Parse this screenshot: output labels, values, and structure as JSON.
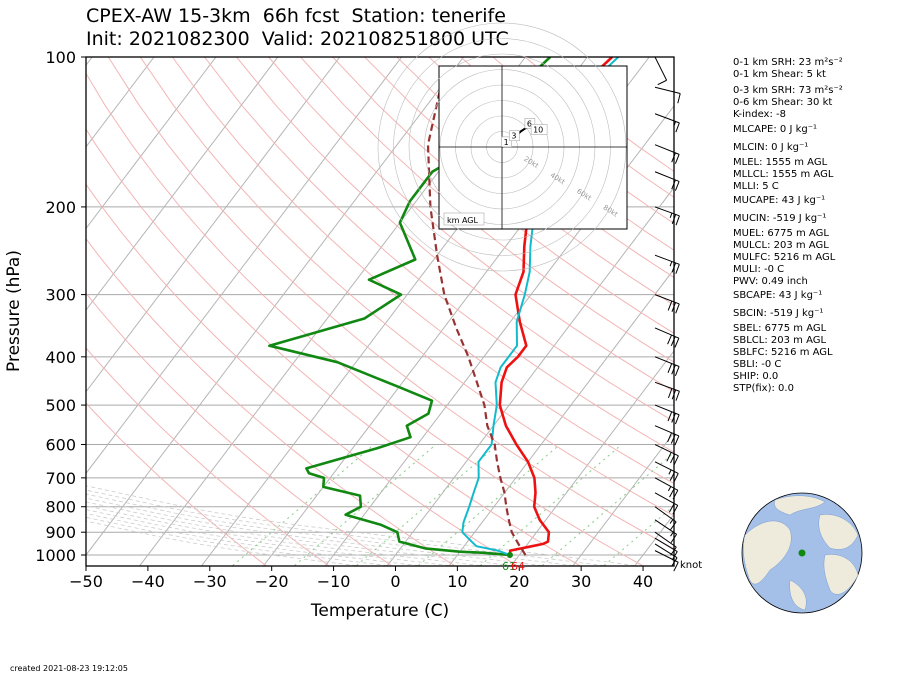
{
  "title": {
    "line1": "CPEX-AW 15-3km  66h fcst  Station: tenerife",
    "line2": "Init: 2021082300  Valid: 202108251800 UTC"
  },
  "created": "created 2021-08-23 19:12:05",
  "wind_unit": "knot",
  "hodograph": {
    "label": "km AGL",
    "ring_labels": [
      "20kt",
      "40kt",
      "60kt",
      "80kt"
    ],
    "height_labels": [
      "1",
      "3",
      "6",
      "10"
    ]
  },
  "surface_labels": {
    "dewpoint": "61",
    "temperature": "64"
  },
  "indices": [
    {
      "text": "0-1 km SRH: 23 m²s⁻²"
    },
    {
      "text": "0-1 km Shear: 5 kt"
    },
    {
      "text": "0-3 km SRH: 73 m²s⁻²"
    },
    {
      "text": "0-6 km Shear: 30 kt"
    },
    {
      "text": "K-index: -8"
    },
    {
      "text": "MLCAPE: 0 J kg⁻¹"
    },
    {
      "text": "MLCIN: 0 J kg⁻¹"
    },
    {
      "text": "MLEL: 1555 m AGL"
    },
    {
      "text": "MLLCL: 1555 m AGL"
    },
    {
      "text": "MLLI: 5 C"
    },
    {
      "text": "MUCAPE: 43 J kg⁻¹"
    },
    {
      "text": "MUCIN: -519 J kg⁻¹"
    },
    {
      "text": "MUEL: 6775 m AGL"
    },
    {
      "text": "MULCL: 203 m AGL"
    },
    {
      "text": "MULFC: 5216 m AGL"
    },
    {
      "text": "MULI: -0 C"
    },
    {
      "text": "PWV: 0.49 inch"
    },
    {
      "text": "SBCAPE: 43 J kg⁻¹"
    },
    {
      "text": "SBCIN: -519 J kg⁻¹"
    },
    {
      "text": "SBEL: 6775 m AGL"
    },
    {
      "text": "SBLCL: 203 m AGL"
    },
    {
      "text": "SBLFC: 5216 m AGL"
    },
    {
      "text": "SBLI: -0 C"
    },
    {
      "text": "SHIP: 0.0"
    },
    {
      "text": "STP(fix): 0.0"
    }
  ],
  "chart_data": {
    "type": "line",
    "xlabel": "Temperature (C)",
    "ylabel": "Pressure (hPa)",
    "xlim": [
      -50,
      45
    ],
    "ylim": [
      1000,
      100
    ],
    "y_scale": "log",
    "x_ticks": [
      -50,
      -40,
      -30,
      -20,
      -10,
      0,
      10,
      20,
      30,
      40
    ],
    "y_ticks": [
      100,
      200,
      300,
      400,
      500,
      600,
      700,
      800,
      900,
      1000
    ],
    "x_tick_labels": [
      "−50",
      "−40",
      "−30",
      "−20",
      "−10",
      "0",
      "10",
      "20",
      "30",
      "40"
    ],
    "grid": true,
    "colors": {
      "temperature": "#ee1111",
      "dewpoint": "#118811",
      "wetbulb": "#11bbcc",
      "parcel": "#993333",
      "dry_adiabat": "#f3b5b5",
      "moist_adiabat": "#cccccc",
      "mixing_ratio": "#88cc88",
      "isotherm": "#b5b5b5"
    },
    "series": [
      {
        "name": "Temperature",
        "points": [
          [
            18.5,
            1000
          ],
          [
            18,
            980
          ],
          [
            21,
            960
          ],
          [
            22.5,
            950
          ],
          [
            23,
            940
          ],
          [
            22,
            900
          ],
          [
            19,
            850
          ],
          [
            16.5,
            800
          ],
          [
            15,
            750
          ],
          [
            13,
            700
          ],
          [
            10,
            650
          ],
          [
            6,
            600
          ],
          [
            2,
            550
          ],
          [
            -1.5,
            500
          ],
          [
            -4,
            450
          ],
          [
            -5,
            420
          ],
          [
            -4.5,
            400
          ],
          [
            -4.5,
            380
          ],
          [
            -8.5,
            340
          ],
          [
            -12.5,
            300
          ],
          [
            -14,
            270
          ],
          [
            -17,
            240
          ],
          [
            -20,
            210
          ],
          [
            -24,
            180
          ],
          [
            -27,
            160
          ],
          [
            -28.5,
            140
          ],
          [
            -28,
            120
          ],
          [
            -27,
            110
          ],
          [
            -26,
            100
          ]
        ]
      },
      {
        "name": "Dewpoint",
        "points": [
          [
            18.5,
            1000
          ],
          [
            14,
            990
          ],
          [
            10,
            985
          ],
          [
            4,
            970
          ],
          [
            -1,
            940
          ],
          [
            -2.5,
            900
          ],
          [
            -6,
            870
          ],
          [
            -13,
            830
          ],
          [
            -11.5,
            800
          ],
          [
            -13,
            760
          ],
          [
            -20,
            730
          ],
          [
            -21,
            700
          ],
          [
            -24,
            685
          ],
          [
            -25,
            670
          ],
          [
            -16,
            610
          ],
          [
            -12,
            580
          ],
          [
            -14,
            550
          ],
          [
            -12,
            520
          ],
          [
            -13,
            490
          ],
          [
            -20,
            460
          ],
          [
            -33,
            410
          ],
          [
            -46,
            380
          ],
          [
            -34,
            335
          ],
          [
            -31,
            300
          ],
          [
            -38,
            280
          ],
          [
            -33,
            255
          ],
          [
            -40,
            215
          ],
          [
            -41,
            195
          ],
          [
            -41,
            170
          ],
          [
            -39,
            160
          ],
          [
            -39,
            140
          ],
          [
            -38,
            120
          ],
          [
            -37,
            110
          ],
          [
            -36,
            100
          ]
        ]
      },
      {
        "name": "Wet-bulb",
        "points": [
          [
            18.5,
            1000
          ],
          [
            16,
            980
          ],
          [
            12,
            960
          ],
          [
            10,
            930
          ],
          [
            8,
            900
          ],
          [
            7,
            860
          ],
          [
            6,
            800
          ],
          [
            5,
            750
          ],
          [
            4,
            700
          ],
          [
            2,
            650
          ],
          [
            2,
            600
          ],
          [
            0,
            550
          ],
          [
            -2,
            500
          ],
          [
            -5,
            450
          ],
          [
            -6,
            420
          ],
          [
            -6,
            380
          ],
          [
            -9,
            340
          ],
          [
            -11,
            300
          ],
          [
            -13,
            270
          ],
          [
            -16,
            240
          ],
          [
            -19,
            210
          ],
          [
            -23,
            180
          ],
          [
            -26,
            160
          ],
          [
            -28,
            140
          ],
          [
            -27,
            120
          ],
          [
            -26,
            110
          ],
          [
            -25,
            100
          ]
        ]
      },
      {
        "name": "Parcel",
        "points": [
          [
            21,
            1000
          ],
          [
            18.5,
            950
          ],
          [
            16,
            900
          ],
          [
            14,
            850
          ],
          [
            12,
            800
          ],
          [
            10,
            750
          ],
          [
            7.5,
            700
          ],
          [
            5,
            650
          ],
          [
            2.5,
            600
          ],
          [
            -1,
            550
          ],
          [
            -4,
            500
          ],
          [
            -8,
            450
          ],
          [
            -12.5,
            400
          ],
          [
            -18,
            350
          ],
          [
            -24,
            300
          ],
          [
            -30,
            250
          ],
          [
            -37,
            200
          ],
          [
            -45,
            150
          ],
          [
            -50,
            115
          ]
        ]
      }
    ],
    "barbs": [
      {
        "p": 980,
        "u": -8,
        "v": 4
      },
      {
        "p": 950,
        "u": -8,
        "v": 5
      },
      {
        "p": 925,
        "u": -10,
        "v": 6
      },
      {
        "p": 900,
        "u": -10,
        "v": 7
      },
      {
        "p": 850,
        "u": -12,
        "v": 8
      },
      {
        "p": 800,
        "u": -14,
        "v": 10
      },
      {
        "p": 750,
        "u": -18,
        "v": 10
      },
      {
        "p": 700,
        "u": -22,
        "v": 12
      },
      {
        "p": 650,
        "u": -24,
        "v": 12
      },
      {
        "p": 600,
        "u": -27,
        "v": 13
      },
      {
        "p": 550,
        "u": -28,
        "v": 12
      },
      {
        "p": 500,
        "u": -30,
        "v": 12
      },
      {
        "p": 450,
        "u": -30,
        "v": 11
      },
      {
        "p": 400,
        "u": -30,
        "v": 12
      },
      {
        "p": 350,
        "u": -28,
        "v": 12
      },
      {
        "p": 300,
        "u": -26,
        "v": 10
      },
      {
        "p": 250,
        "u": -24,
        "v": 9
      },
      {
        "p": 200,
        "u": -22,
        "v": 8
      },
      {
        "p": 170,
        "u": -20,
        "v": 8
      },
      {
        "p": 150,
        "u": -20,
        "v": 8
      },
      {
        "p": 130,
        "u": -16,
        "v": 6
      },
      {
        "p": 115,
        "u": -8,
        "v": 2
      },
      {
        "p": 100,
        "u": -4,
        "v": 8
      }
    ],
    "hodograph_points": [
      [
        0,
        0
      ],
      [
        3,
        2
      ],
      [
        5,
        4
      ],
      [
        8,
        6
      ],
      [
        12,
        10
      ],
      [
        18,
        14
      ],
      [
        20,
        12
      ],
      [
        22,
        10
      ]
    ]
  }
}
